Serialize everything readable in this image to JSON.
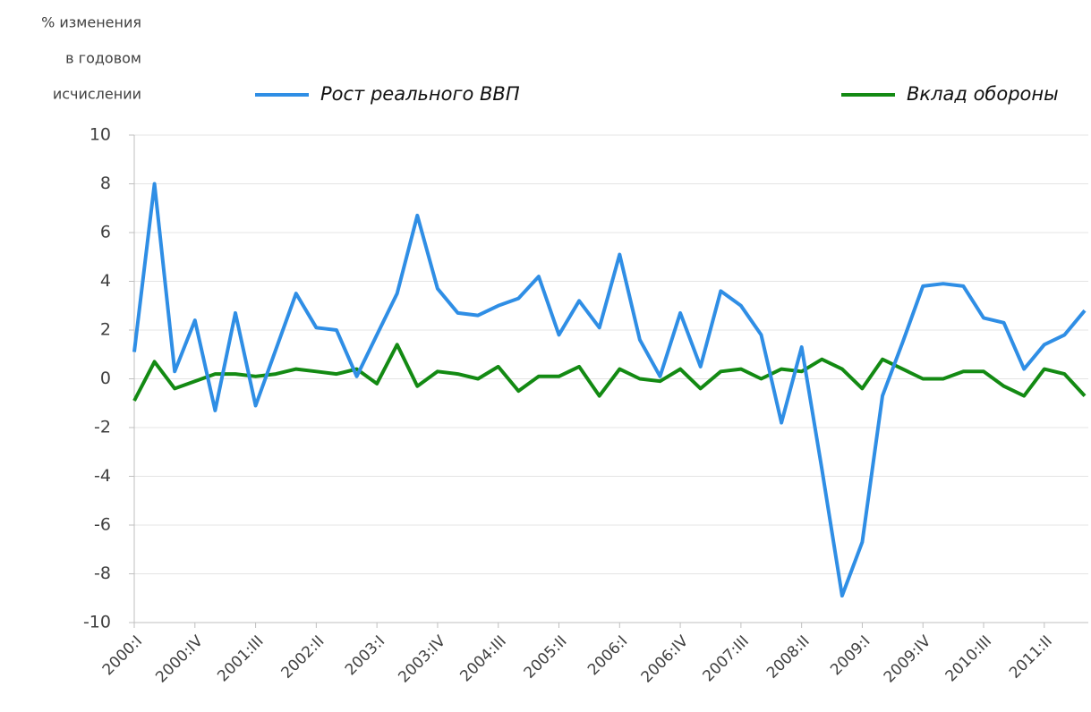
{
  "chart_data": {
    "type": "line",
    "ylabel": [
      "% изменения",
      "в годовом",
      "исчислении"
    ],
    "categories": [
      "2000:I",
      null,
      null,
      "2000:IV",
      null,
      null,
      "2001:III",
      null,
      null,
      "2002:II",
      null,
      null,
      "2003:I",
      null,
      null,
      "2003:IV",
      null,
      null,
      "2004:III",
      null,
      null,
      "2005:II",
      null,
      null,
      "2006:I",
      null,
      null,
      "2006:IV",
      null,
      null,
      "2007:III",
      null,
      null,
      "2008:II",
      null,
      null,
      "2009:I",
      null,
      null,
      "2009:IV",
      null,
      null,
      "2010:III",
      null,
      null,
      "2011:II",
      null,
      null
    ],
    "series": [
      {
        "name": "Рост реального ВВП",
        "color": "#2f8ee5",
        "values": [
          1.1,
          8.0,
          0.3,
          2.4,
          -1.3,
          2.7,
          -1.1,
          1.2,
          3.5,
          2.1,
          2.0,
          0.1,
          1.8,
          3.5,
          6.7,
          3.7,
          2.7,
          2.6,
          3.0,
          3.3,
          4.2,
          1.8,
          3.2,
          2.1,
          5.1,
          1.6,
          0.1,
          2.7,
          0.5,
          3.6,
          3.0,
          1.8,
          -1.8,
          1.3,
          -3.7,
          -8.9,
          -6.7,
          -0.7,
          1.5,
          3.8,
          3.9,
          3.8,
          2.5,
          2.3,
          0.4,
          1.4,
          1.8,
          2.8
        ]
      },
      {
        "name": "Вклад обороны",
        "color": "#138a13",
        "values": [
          -0.9,
          0.7,
          -0.4,
          -0.1,
          0.2,
          0.2,
          0.1,
          0.2,
          0.4,
          0.3,
          0.2,
          0.4,
          -0.2,
          1.4,
          -0.3,
          0.3,
          0.2,
          0.0,
          0.5,
          -0.5,
          0.1,
          0.1,
          0.5,
          -0.7,
          0.4,
          0.0,
          -0.1,
          0.4,
          -0.4,
          0.3,
          0.4,
          0.0,
          0.4,
          0.3,
          0.8,
          0.4,
          -0.4,
          0.8,
          0.4,
          0.0,
          0.0,
          0.3,
          0.3,
          -0.3,
          -0.7,
          0.4,
          0.2,
          -0.7
        ]
      }
    ],
    "ylim": [
      -10,
      10
    ],
    "yticks": [
      -10,
      -8,
      -6,
      -4,
      -2,
      0,
      2,
      4,
      6,
      8,
      10
    ],
    "grid": true
  }
}
